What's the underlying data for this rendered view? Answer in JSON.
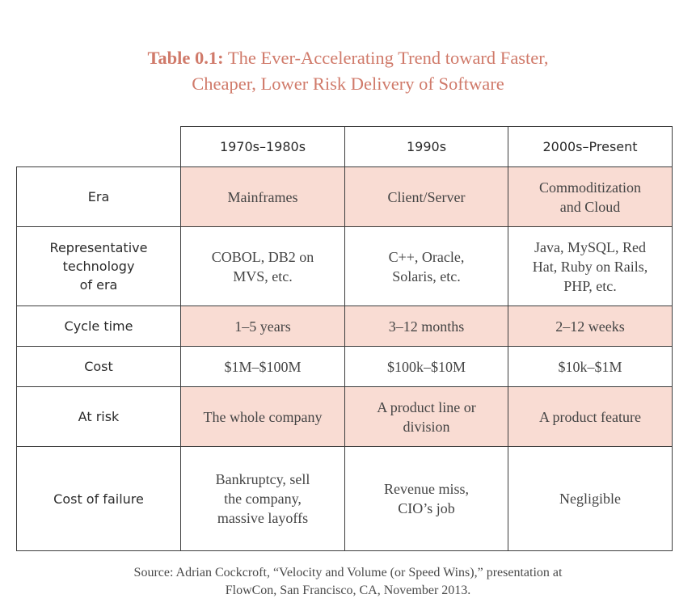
{
  "caption": {
    "label": "Table 0.1:",
    "title_line1": "The Ever-Accelerating Trend toward Faster,",
    "title_line2": "Cheaper, Lower Risk Delivery of Software"
  },
  "table": {
    "columns": [
      "1970s–1980s",
      "1990s",
      "2000s–Present"
    ],
    "rows": [
      {
        "header": [
          "Era"
        ],
        "shaded": true,
        "cells": [
          [
            "Mainframes"
          ],
          [
            "Client/Server"
          ],
          [
            "Commoditization",
            "and Cloud"
          ]
        ]
      },
      {
        "header": [
          "Representative",
          "technology",
          "of era"
        ],
        "shaded": false,
        "cells": [
          [
            "COBOL, DB2 on",
            "MVS, etc."
          ],
          [
            "C++, Oracle,",
            "Solaris, etc."
          ],
          [
            "Java, MySQL, Red",
            "Hat, Ruby on Rails,",
            "PHP, etc."
          ]
        ]
      },
      {
        "header": [
          "Cycle time"
        ],
        "shaded": true,
        "cells": [
          [
            "1–5 years"
          ],
          [
            "3–12 months"
          ],
          [
            "2–12 weeks"
          ]
        ]
      },
      {
        "header": [
          "Cost"
        ],
        "shaded": false,
        "cells": [
          [
            "$1M–$100M"
          ],
          [
            "$100k–$10M"
          ],
          [
            "$10k–$1M"
          ]
        ]
      },
      {
        "header": [
          "At risk"
        ],
        "shaded": true,
        "cells": [
          [
            "The whole company"
          ],
          [
            "A product line or",
            "division"
          ],
          [
            "A product feature"
          ]
        ]
      },
      {
        "header": [
          "Cost of failure"
        ],
        "shaded": false,
        "cells": [
          [
            "Bankruptcy, sell",
            "the company,",
            "massive layoffs"
          ],
          [
            "Revenue miss,",
            "CIO’s job"
          ],
          [
            "Negligible"
          ]
        ]
      }
    ]
  },
  "source": {
    "line1": "Source: Adrian Cockcroft, “Velocity and Volume (or Speed Wins),” presentation at",
    "line2": "FlowCon, San Francisco, CA, November 2013."
  }
}
